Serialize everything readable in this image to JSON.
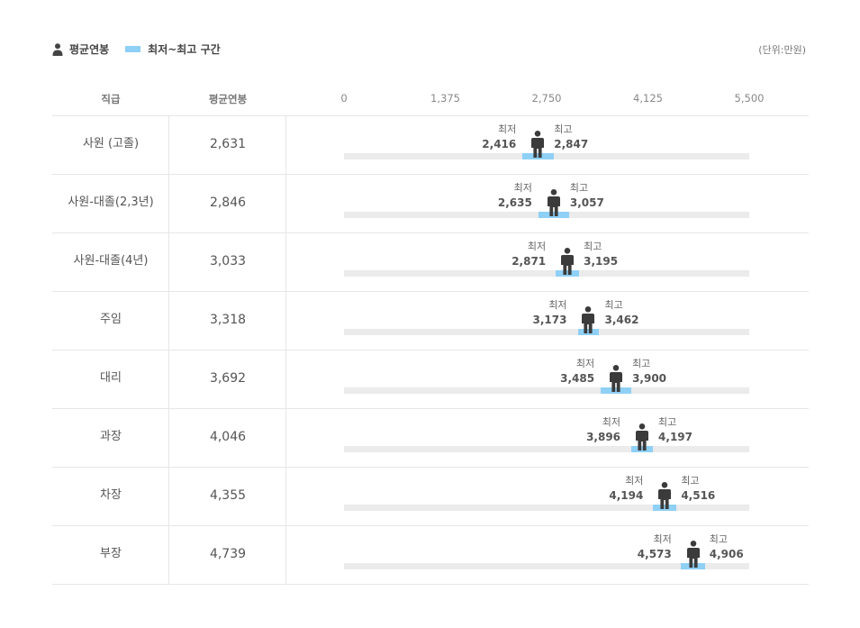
{
  "legend": {
    "avg_label": "평균연봉",
    "range_label": "최저~최고 구간"
  },
  "unit": "(단위:만원)",
  "headers": {
    "rank": "직급",
    "avg": "평균연봉"
  },
  "labels": {
    "min": "최저",
    "max": "최고"
  },
  "colors": {
    "range": "#8fd0f7",
    "track": "#ebebeb",
    "marker": "#3b3b3b"
  },
  "chart_data": {
    "type": "range",
    "title": "",
    "xlabel": "",
    "ylabel": "",
    "xlim": [
      0,
      5500
    ],
    "ticks": [
      0,
      1375,
      2750,
      4125,
      5500
    ],
    "tick_labels": [
      "0",
      "1,375",
      "2,750",
      "4,125",
      "5,500"
    ],
    "rows": [
      {
        "rank": "사원 (고졸)",
        "avg": 2631,
        "avg_label": "2,631",
        "min": 2416,
        "min_label": "2,416",
        "max": 2847,
        "max_label": "2,847"
      },
      {
        "rank": "사원-대졸(2,3년)",
        "avg": 2846,
        "avg_label": "2,846",
        "min": 2635,
        "min_label": "2,635",
        "max": 3057,
        "max_label": "3,057"
      },
      {
        "rank": "사원-대졸(4년)",
        "avg": 3033,
        "avg_label": "3,033",
        "min": 2871,
        "min_label": "2,871",
        "max": 3195,
        "max_label": "3,195"
      },
      {
        "rank": "주임",
        "avg": 3318,
        "avg_label": "3,318",
        "min": 3173,
        "min_label": "3,173",
        "max": 3462,
        "max_label": "3,462"
      },
      {
        "rank": "대리",
        "avg": 3692,
        "avg_label": "3,692",
        "min": 3485,
        "min_label": "3,485",
        "max": 3900,
        "max_label": "3,900"
      },
      {
        "rank": "과장",
        "avg": 4046,
        "avg_label": "4,046",
        "min": 3896,
        "min_label": "3,896",
        "max": 4197,
        "max_label": "4,197"
      },
      {
        "rank": "차장",
        "avg": 4355,
        "avg_label": "4,355",
        "min": 4194,
        "min_label": "4,194",
        "max": 4516,
        "max_label": "4,516"
      },
      {
        "rank": "부장",
        "avg": 4739,
        "avg_label": "4,739",
        "min": 4573,
        "min_label": "4,573",
        "max": 4906,
        "max_label": "4,906"
      }
    ]
  }
}
